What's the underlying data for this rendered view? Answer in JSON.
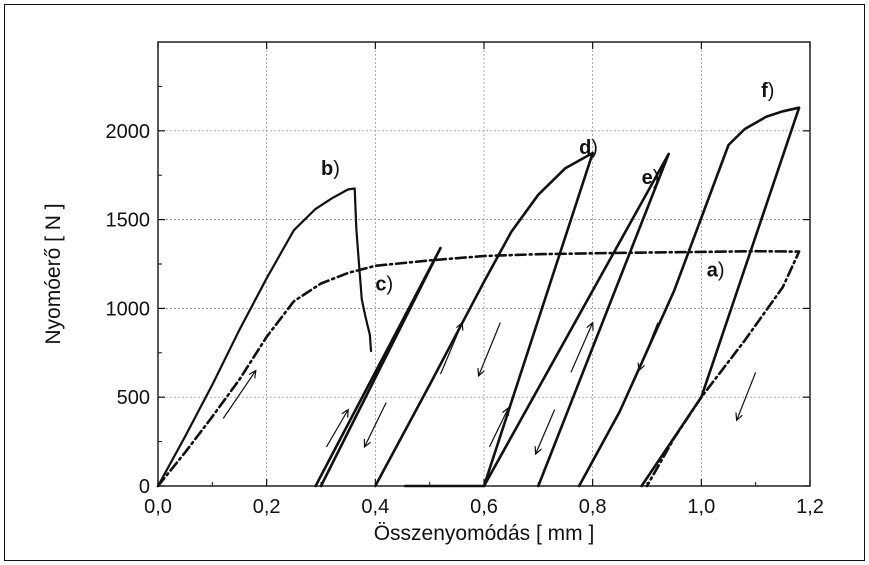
{
  "chart_data": {
    "type": "line",
    "xlabel": "Összenyomódás [ mm ]",
    "ylabel": "Nyomóerő [ N ]",
    "xlim": [
      0,
      1.2
    ],
    "ylim": [
      0,
      2500
    ],
    "x_ticks": [
      0,
      0.2,
      0.4,
      0.6,
      0.8,
      1.0,
      1.2
    ],
    "x_tick_labels": [
      "0,0",
      "0,2",
      "0,4",
      "0,6",
      "0,8",
      "1,0",
      "1,2"
    ],
    "y_ticks": [
      0,
      500,
      1000,
      1500,
      2000
    ],
    "y_tick_labels": [
      "0",
      "500",
      "1000",
      "1500",
      "2000"
    ],
    "grid": true,
    "series": [
      {
        "label": "a",
        "style": "dash-dot",
        "x": [
          0,
          0.05,
          0.1,
          0.15,
          0.2,
          0.25,
          0.3,
          0.35,
          0.4,
          0.5,
          0.6,
          0.7,
          0.8,
          0.9,
          1.0,
          1.1,
          1.18,
          1.15,
          1.08,
          1.0,
          0.95,
          0.9
        ],
        "y": [
          0,
          190,
          390,
          600,
          840,
          1040,
          1140,
          1200,
          1240,
          1270,
          1295,
          1305,
          1310,
          1315,
          1318,
          1322,
          1320,
          1120,
          820,
          500,
          270,
          0
        ]
      },
      {
        "label": "b",
        "style": "solid",
        "x": [
          0,
          0.05,
          0.1,
          0.15,
          0.2,
          0.25,
          0.29,
          0.32,
          0.35,
          0.362,
          0.365,
          0.37,
          0.375,
          0.382,
          0.39,
          0.392
        ],
        "y": [
          0,
          280,
          570,
          880,
          1170,
          1440,
          1560,
          1620,
          1670,
          1675,
          1450,
          1250,
          1050,
          950,
          850,
          760
        ]
      },
      {
        "label": "c",
        "style": "solid",
        "x": [
          0.29,
          0.52,
          0.3
        ],
        "y": [
          0,
          1340,
          0
        ]
      },
      {
        "label": "d",
        "style": "solid",
        "x": [
          0.4,
          0.5,
          0.55,
          0.6,
          0.65,
          0.7,
          0.75,
          0.8,
          0.6,
          0.455
        ],
        "y": [
          0,
          570,
          860,
          1150,
          1430,
          1640,
          1790,
          1875,
          0,
          0
        ]
      },
      {
        "label": "e",
        "style": "solid",
        "x": [
          0.6,
          0.94,
          0.7
        ],
        "y": [
          0,
          1870,
          0
        ]
      },
      {
        "label": "f",
        "style": "solid",
        "x": [
          0.775,
          0.85,
          0.95,
          1.05,
          1.08,
          1.12,
          1.15,
          1.18,
          1.0,
          0.89
        ],
        "y": [
          0,
          420,
          1100,
          1920,
          2010,
          2080,
          2110,
          2130,
          500,
          0
        ]
      }
    ],
    "curve_labels": [
      {
        "letter": "a",
        "suffix": ")",
        "x": 1.01,
        "y": 1180
      },
      {
        "letter": "b",
        "suffix": ")",
        "x": 0.3,
        "y": 1750
      },
      {
        "letter": "c",
        "suffix": ")",
        "x": 0.4,
        "y": 1100
      },
      {
        "letter": "d",
        "suffix": ")",
        "x": 0.775,
        "y": 1870
      },
      {
        "letter": "e",
        "suffix": ")",
        "x": 0.89,
        "y": 1700
      },
      {
        "letter": "f",
        "suffix": ")",
        "x": 1.11,
        "y": 2190
      }
    ],
    "arrows": [
      {
        "x1": 0.12,
        "y1": 380,
        "x2": 0.18,
        "y2": 650
      },
      {
        "x1": 0.31,
        "y1": 220,
        "x2": 0.35,
        "y2": 430
      },
      {
        "x1": 0.42,
        "y1": 470,
        "x2": 0.38,
        "y2": 220
      },
      {
        "x1": 0.52,
        "y1": 630,
        "x2": 0.56,
        "y2": 920
      },
      {
        "x1": 0.63,
        "y1": 920,
        "x2": 0.59,
        "y2": 620
      },
      {
        "x1": 0.61,
        "y1": 220,
        "x2": 0.645,
        "y2": 440
      },
      {
        "x1": 0.73,
        "y1": 430,
        "x2": 0.695,
        "y2": 180
      },
      {
        "x1": 0.76,
        "y1": 640,
        "x2": 0.8,
        "y2": 920
      },
      {
        "x1": 0.92,
        "y1": 920,
        "x2": 0.885,
        "y2": 650
      },
      {
        "x1": 1.1,
        "y1": 640,
        "x2": 1.065,
        "y2": 370
      }
    ]
  }
}
